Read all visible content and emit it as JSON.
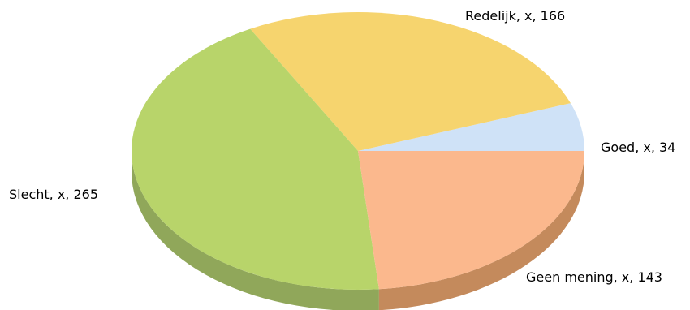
{
  "chart_data": {
    "type": "pie",
    "categories": [
      "Goed",
      "Redelijk",
      "Slecht",
      "Geen mening"
    ],
    "values": [
      34,
      166,
      265,
      143
    ],
    "labels": [
      "Goed, x, 34",
      "Redelijk, x, 166",
      "Slecht, x, 265",
      "Geen mening, x, 143"
    ],
    "colors": [
      "#cfe2f7",
      "#f6d46e",
      "#b8d46a",
      "#fbb88d"
    ],
    "side_colors": [
      "#a9b8c8",
      "#c9a85a",
      "#90a75a",
      "#c48a5c"
    ],
    "style": "3d",
    "legend": "none",
    "start": "3 o'clock, counter-clockwise"
  }
}
